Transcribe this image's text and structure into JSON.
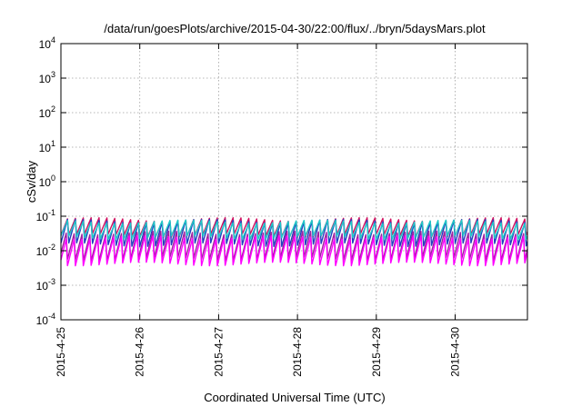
{
  "chart_data": {
    "type": "line",
    "title": "/data/run/goesPlots/archive/2015-04-30/22:00/flux/../bryn/5daysMars.plot",
    "xlabel": "Coordinated Universal Time (UTC)",
    "ylabel": "cSv/day",
    "yscale": "log",
    "ylim": [
      0.0001,
      10000
    ],
    "xlim": [
      "2015-04-25T00:00",
      "2015-04-30T22:00"
    ],
    "grid": true,
    "legend": "none",
    "y_ticks": [
      {
        "base": "10",
        "exp": "-4",
        "value": 0.0001
      },
      {
        "base": "10",
        "exp": "-3",
        "value": 0.001
      },
      {
        "base": "10",
        "exp": "-2",
        "value": 0.01
      },
      {
        "base": "10",
        "exp": "-1",
        "value": 0.1
      },
      {
        "base": "10",
        "exp": "0",
        "value": 1
      },
      {
        "base": "10",
        "exp": "1",
        "value": 10
      },
      {
        "base": "10",
        "exp": "2",
        "value": 100
      },
      {
        "base": "10",
        "exp": "3",
        "value": 1000
      },
      {
        "base": "10",
        "exp": "4",
        "value": 10000
      }
    ],
    "x_ticks": [
      {
        "label": "2015-4-25",
        "value": "2015-04-25T00:00"
      },
      {
        "label": "2015-4-26",
        "value": "2015-04-26T00:00"
      },
      {
        "label": "2015-4-27",
        "value": "2015-04-27T00:00"
      },
      {
        "label": "2015-4-28",
        "value": "2015-04-28T00:00"
      },
      {
        "label": "2015-4-29",
        "value": "2015-04-29T00:00"
      },
      {
        "label": "2015-4-30",
        "value": "2015-04-30T00:00"
      }
    ],
    "sawtooth_period_hours": 2.4,
    "series": [
      {
        "color": "#d01060",
        "peak": 0.1,
        "trough": 0.028
      },
      {
        "color": "#2040c0",
        "peak": 0.085,
        "trough": 0.013
      },
      {
        "color": "#20c8c8",
        "peak": 0.07,
        "trough": 0.02
      },
      {
        "color": "#a020a0",
        "peak": 0.04,
        "trough": 0.005
      },
      {
        "color": "#ff00ff",
        "peak": 0.025,
        "trough": 0.003
      }
    ]
  }
}
